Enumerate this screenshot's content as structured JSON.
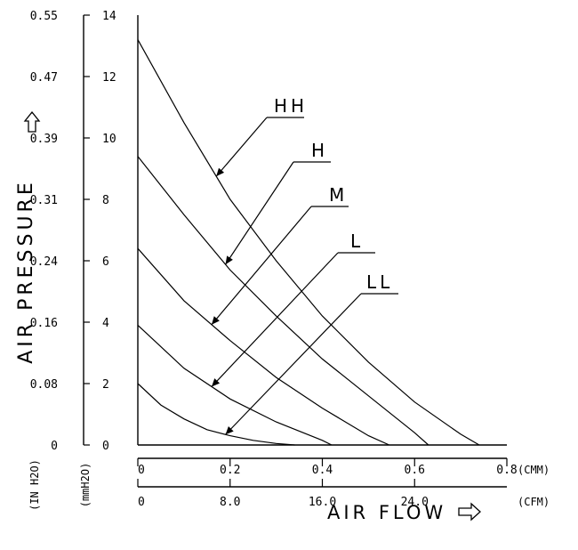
{
  "chart_data": {
    "type": "line",
    "y_left_outer": {
      "label": "(IN H2O)",
      "ticks": [
        "0.55",
        "0.47",
        "0.39",
        "0.31",
        "0.24",
        "0.16",
        "0.08",
        "0"
      ]
    },
    "y_left_inner": {
      "label": "(mmH2O)",
      "ticks": [
        "14",
        "12",
        "10",
        "8",
        "6",
        "4",
        "2",
        "0"
      ],
      "ylim": [
        0,
        14
      ]
    },
    "y_title": "AIR PRESSURE",
    "x_primary": {
      "unit": "(CMM)",
      "ticks": [
        "0",
        "0.2",
        "0.4",
        "0.6",
        "0.8"
      ],
      "xlim": [
        0,
        0.8
      ]
    },
    "x_secondary": {
      "unit": "(CFM)",
      "ticks": [
        "0",
        "8.0",
        "16.0",
        "24.0"
      ]
    },
    "x_title": "AIR FLOW",
    "series": [
      {
        "name": "HH",
        "x": [
          0,
          0.1,
          0.2,
          0.3,
          0.4,
          0.5,
          0.6,
          0.7,
          0.74
        ],
        "y": [
          13.2,
          10.5,
          8.0,
          6.0,
          4.2,
          2.7,
          1.4,
          0.35,
          0
        ]
      },
      {
        "name": "H",
        "x": [
          0,
          0.1,
          0.2,
          0.3,
          0.4,
          0.5,
          0.6,
          0.63
        ],
        "y": [
          9.4,
          7.5,
          5.7,
          4.2,
          2.8,
          1.6,
          0.4,
          0
        ]
      },
      {
        "name": "M",
        "x": [
          0,
          0.1,
          0.2,
          0.3,
          0.4,
          0.5,
          0.545
        ],
        "y": [
          6.4,
          4.7,
          3.4,
          2.2,
          1.2,
          0.3,
          0
        ]
      },
      {
        "name": "L",
        "x": [
          0,
          0.1,
          0.2,
          0.3,
          0.4,
          0.42
        ],
        "y": [
          3.9,
          2.5,
          1.5,
          0.75,
          0.15,
          0
        ]
      },
      {
        "name": "LL",
        "x": [
          0,
          0.05,
          0.1,
          0.15,
          0.2,
          0.25,
          0.3,
          0.34
        ],
        "y": [
          2.0,
          1.3,
          0.85,
          0.5,
          0.3,
          0.15,
          0.05,
          0
        ]
      }
    ]
  }
}
